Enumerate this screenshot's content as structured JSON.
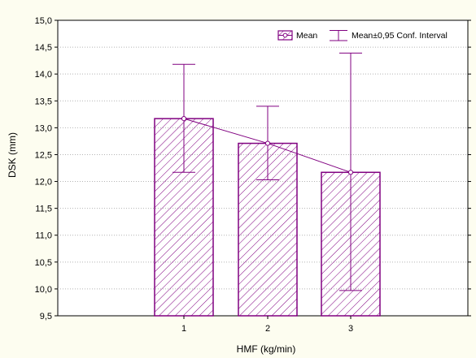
{
  "chart_data": {
    "type": "bar",
    "title": "",
    "xlabel": "HMF (kg/min)",
    "ylabel": "DSK (mm)",
    "categories": [
      "1",
      "2",
      "3"
    ],
    "series": [
      {
        "name": "Mean",
        "values": [
          13.17,
          12.71,
          12.17
        ],
        "ci_lower": [
          12.17,
          12.03,
          9.97
        ],
        "ci_upper": [
          14.18,
          13.4,
          14.39
        ]
      }
    ],
    "error_bar_label": "Mean±0,95 Conf. Interval",
    "ylim": [
      9.5,
      15.0
    ],
    "yticks": [
      "9,5",
      "10,0",
      "10,5",
      "11,0",
      "11,5",
      "12,0",
      "12,5",
      "13,0",
      "13,5",
      "14,0",
      "14,5",
      "15,0"
    ],
    "grid": true,
    "legend_position": "top-right",
    "colors": {
      "series": "#800080",
      "background": "#fdfdf0",
      "plot": "#ffffff",
      "grid": "#b4b4b4"
    }
  }
}
